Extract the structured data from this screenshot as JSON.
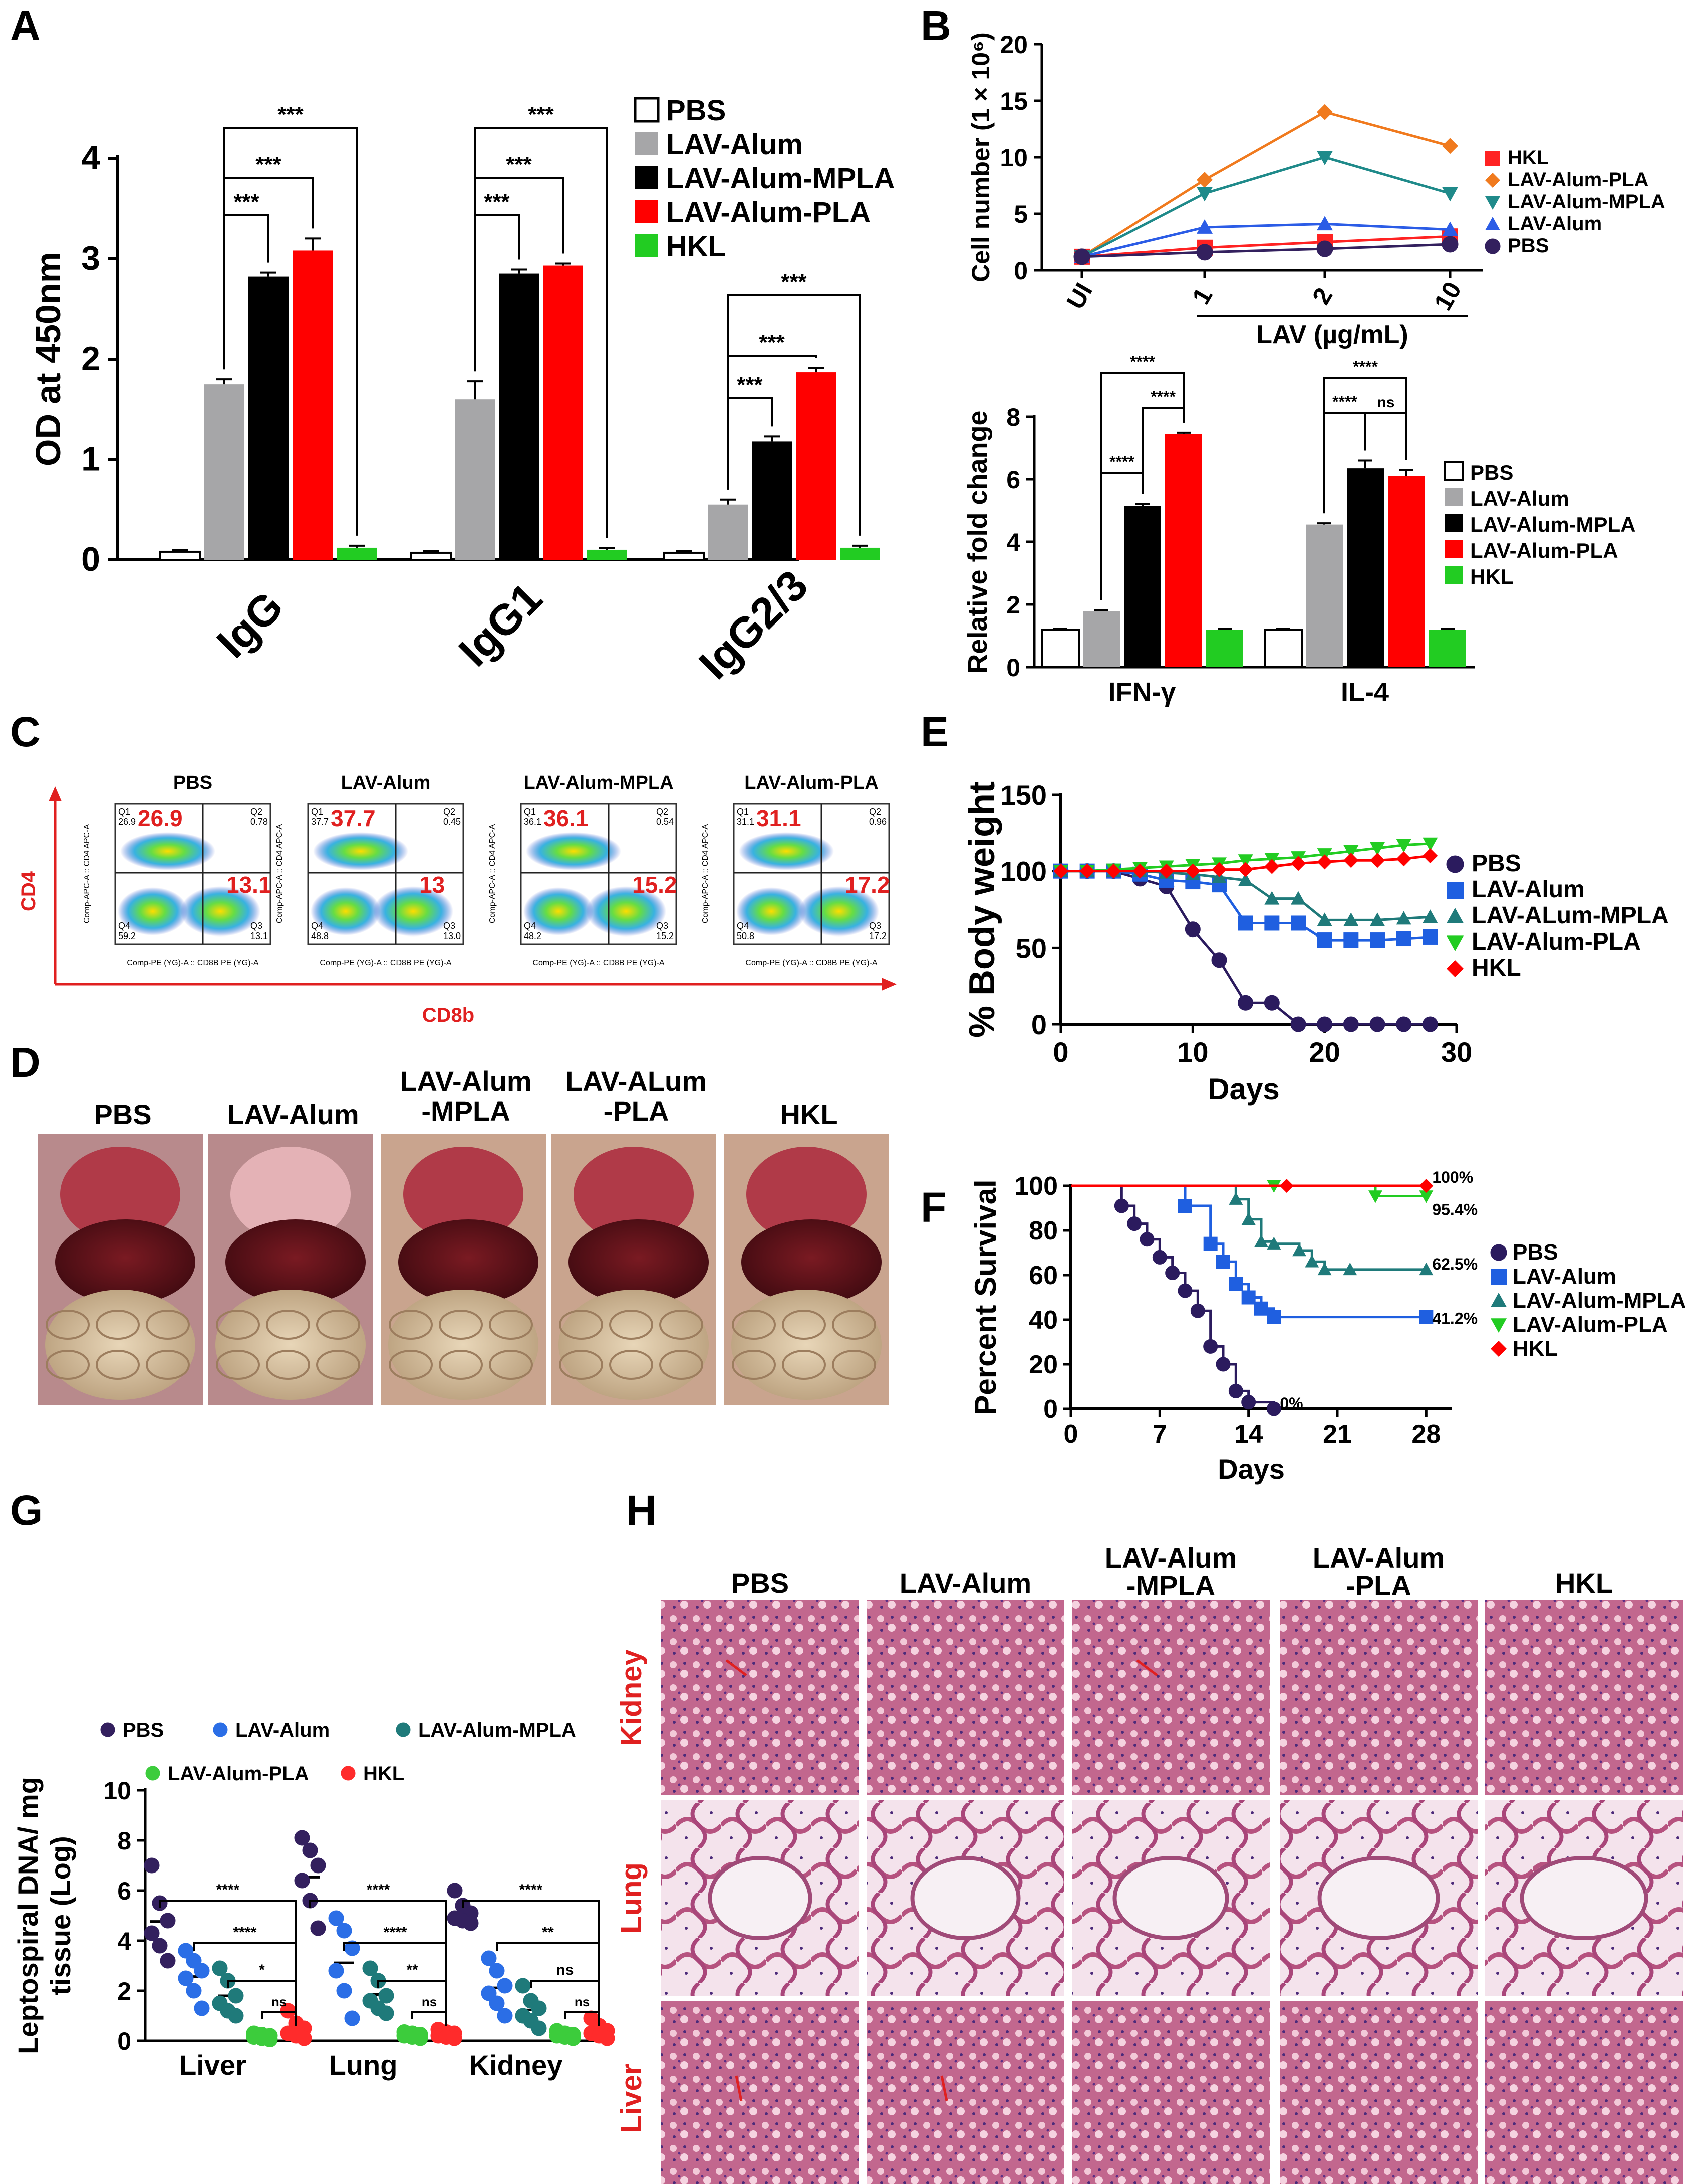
{
  "panel_labels": [
    "A",
    "B",
    "C",
    "D",
    "E",
    "F",
    "G",
    "H"
  ],
  "colors": {
    "pbs": "#ffffff",
    "alum": "#a6a6a8",
    "mpla": "#000000",
    "pla": "#ff0000",
    "hkl": "#22cc22",
    "survival_pbs": "#2b1b5e",
    "survival_alum": "#1f5fe0",
    "survival_mpla": "#1f7a7a",
    "survival_pla": "#22cc22",
    "survival_hkl": "#ff0000",
    "lineB_hkl": "#ff2222",
    "lineB_pla": "#f07a1e",
    "lineB_mpla": "#1f8a8a",
    "lineB_alum": "#2b5ce6",
    "lineB_pbs": "#33205e",
    "g_pbs": "#33205e",
    "g_alum": "#2b6ee6",
    "g_mpla": "#1f7a7a",
    "g_pla": "#3ccc3c",
    "g_hkl": "#ff2b2b",
    "hist_red": "#e02020"
  },
  "chart_data": [
    {
      "id": "A",
      "type": "bar",
      "title": "",
      "ylabel": "OD at 450nm",
      "xlabel": "",
      "ylim": [
        0,
        4
      ],
      "yticks": [
        "0",
        "1",
        "2",
        "3",
        "4"
      ],
      "categories": [
        "IgG",
        "IgG1",
        "IgG2/3"
      ],
      "series": [
        {
          "name": "PBS",
          "values": [
            0.08,
            0.07,
            0.07
          ],
          "errors": [
            0.02,
            0.02,
            0.02
          ]
        },
        {
          "name": "LAV-Alum",
          "values": [
            1.75,
            1.6,
            0.55
          ],
          "errors": [
            0.05,
            0.18,
            0.05
          ]
        },
        {
          "name": "LAV-Alum-MPLA",
          "values": [
            2.82,
            2.85,
            1.18
          ],
          "errors": [
            0.04,
            0.04,
            0.05
          ]
        },
        {
          "name": "LAV-Alum-PLA",
          "values": [
            3.08,
            2.93,
            1.87
          ],
          "errors": [
            0.12,
            0.02,
            0.04
          ]
        },
        {
          "name": "HKL",
          "values": [
            0.12,
            0.1,
            0.12
          ],
          "errors": [
            0.02,
            0.02,
            0.02
          ]
        }
      ],
      "legend": [
        "PBS",
        "LAV-Alum",
        "LAV-Alum-MPLA",
        "LAV-Alum-PLA",
        "HKL"
      ],
      "significance": [
        "***",
        "***",
        "***",
        "***",
        "***",
        "***",
        "***",
        "***",
        "***"
      ]
    },
    {
      "id": "B_top",
      "type": "line",
      "ylabel": "Cell number (1 × 10⁶)",
      "xlabel": "LAV (µg/mL)",
      "ylim": [
        0,
        20
      ],
      "yticks": [
        "0",
        "5",
        "10",
        "15",
        "20"
      ],
      "categories": [
        "UI",
        "1",
        "2",
        "10"
      ],
      "series": [
        {
          "name": "HKL",
          "values": [
            1.2,
            2.0,
            2.5,
            3.0
          ]
        },
        {
          "name": "LAV-Alum-PLA",
          "values": [
            1.2,
            8.0,
            14.0,
            11.0
          ]
        },
        {
          "name": "LAV-Alum-MPLA",
          "values": [
            1.2,
            6.8,
            10.0,
            6.8
          ]
        },
        {
          "name": "LAV-Alum",
          "values": [
            1.2,
            3.8,
            4.1,
            3.6
          ]
        },
        {
          "name": "PBS",
          "values": [
            1.2,
            1.6,
            1.9,
            2.3
          ]
        }
      ]
    },
    {
      "id": "B_bottom",
      "type": "bar",
      "ylabel": "Relative fold change",
      "xlabel": "",
      "ylim": [
        0,
        8
      ],
      "yticks": [
        "0",
        "2",
        "4",
        "6",
        "8"
      ],
      "categories": [
        "IFN-γ",
        "IL-4"
      ],
      "series": [
        {
          "name": "PBS",
          "values": [
            1.2,
            1.2
          ],
          "errors": [
            0.03,
            0.03
          ]
        },
        {
          "name": "LAV-Alum",
          "values": [
            1.78,
            4.55
          ],
          "errors": [
            0.04,
            0.04
          ]
        },
        {
          "name": "LAV-Alum-MPLA",
          "values": [
            5.15,
            6.35
          ],
          "errors": [
            0.06,
            0.25
          ]
        },
        {
          "name": "LAV-Alum-PLA",
          "values": [
            7.45,
            6.1
          ],
          "errors": [
            0.04,
            0.2
          ]
        },
        {
          "name": "HKL",
          "values": [
            1.2,
            1.2
          ],
          "errors": [
            0.03,
            0.03
          ]
        }
      ],
      "legend": [
        "PBS",
        "LAV-Alum",
        "LAV-Alum-MPLA",
        "LAV-Alum-PLA",
        "HKL"
      ],
      "significance": [
        "****",
        "****",
        "****",
        "****",
        "****",
        "ns"
      ]
    },
    {
      "id": "C",
      "type": "scatter",
      "xlabel": "CD8b",
      "ylabel": "CD4",
      "axis_x_small": "Comp-PE (YG)-A :: CD8B PE (YG)-A",
      "axis_y_small": "Comp-APC-A :: CD4 APC-A",
      "plots": [
        {
          "title": "PBS",
          "cd4": "26.9",
          "cd8": "13.1",
          "q1": "26.9",
          "q2": "0.78",
          "q3": "13.1",
          "q4": "59.2"
        },
        {
          "title": "LAV-Alum",
          "cd4": "37.7",
          "cd8": "13",
          "q1": "37.7",
          "q2": "0.45",
          "q3": "13.0",
          "q4": "48.8"
        },
        {
          "title": "LAV-Alum-MPLA",
          "cd4": "36.1",
          "cd8": "15.2",
          "q1": "36.1",
          "q2": "0.54",
          "q3": "15.2",
          "q4": "48.2"
        },
        {
          "title": "LAV-Alum-PLA",
          "cd4": "31.1",
          "cd8": "17.2",
          "q1": "31.1",
          "q2": "0.96",
          "q3": "17.2",
          "q4": "50.8"
        }
      ]
    },
    {
      "id": "E",
      "type": "line",
      "ylabel": "% Body weight",
      "xlabel": "Days",
      "xlim": [
        0,
        30
      ],
      "ylim": [
        0,
        150
      ],
      "xticks": [
        "0",
        "10",
        "20",
        "30"
      ],
      "yticks": [
        "0",
        "50",
        "100",
        "150"
      ],
      "series": [
        {
          "name": "PBS",
          "x": [
            0,
            2,
            4,
            6,
            8,
            10,
            12,
            14,
            16,
            18,
            20,
            22,
            24,
            26,
            28
          ],
          "values": [
            100,
            100,
            100,
            95,
            90,
            62,
            42,
            14,
            14,
            0,
            0,
            0,
            0,
            0,
            0
          ]
        },
        {
          "name": "LAV-Alum",
          "x": [
            0,
            2,
            4,
            6,
            8,
            10,
            12,
            14,
            16,
            18,
            20,
            22,
            24,
            26,
            28
          ],
          "values": [
            100,
            100,
            100,
            98,
            94,
            93,
            91,
            66,
            66,
            66,
            55,
            55,
            55,
            56,
            57
          ]
        },
        {
          "name": "LAV-ALum-MPLA",
          "x": [
            0,
            2,
            4,
            6,
            8,
            10,
            12,
            14,
            16,
            18,
            20,
            22,
            24,
            26,
            28
          ],
          "values": [
            100,
            100,
            100,
            100,
            99,
            98,
            96,
            94,
            82,
            82,
            68,
            68,
            68,
            69,
            70
          ]
        },
        {
          "name": "LAV-Alum-PLA",
          "x": [
            0,
            2,
            4,
            6,
            8,
            10,
            12,
            14,
            16,
            18,
            20,
            22,
            24,
            26,
            28
          ],
          "values": [
            100,
            100,
            101,
            102,
            103,
            104,
            105,
            107,
            108,
            109,
            111,
            113,
            115,
            117,
            118
          ]
        },
        {
          "name": "HKL",
          "x": [
            0,
            2,
            4,
            6,
            8,
            10,
            12,
            14,
            16,
            18,
            20,
            22,
            24,
            26,
            28
          ],
          "values": [
            100,
            100,
            100,
            100,
            100,
            100,
            101,
            101,
            103,
            105,
            106,
            107,
            107,
            108,
            110
          ]
        }
      ]
    },
    {
      "id": "F",
      "type": "line",
      "ylabel": "Percent Survival",
      "xlabel": "Days",
      "xlim": [
        0,
        30
      ],
      "ylim": [
        0,
        100
      ],
      "xticks": [
        "0",
        "7",
        "14",
        "21",
        "28"
      ],
      "yticks": [
        "0",
        "20",
        "40",
        "60",
        "80",
        "100"
      ],
      "series": [
        {
          "name": "PBS",
          "x": [
            0,
            4,
            5,
            6,
            7,
            8,
            9,
            10,
            11,
            12,
            13,
            14,
            16
          ],
          "values": [
            100,
            91,
            83,
            76,
            68,
            61,
            53,
            44,
            28,
            20,
            8,
            3,
            0
          ],
          "end_label": "0%"
        },
        {
          "name": "LAV-Alum",
          "x": [
            0,
            9,
            11,
            12,
            13,
            14,
            15,
            16,
            28
          ],
          "values": [
            100,
            91,
            74,
            66,
            56,
            50,
            45,
            41.2,
            41.2
          ],
          "end_label": "41.2%"
        },
        {
          "name": "LAV-Alum-MPLA",
          "x": [
            0,
            13,
            14,
            15,
            16,
            18,
            19,
            20,
            22,
            28
          ],
          "values": [
            100,
            94,
            85,
            75,
            74,
            71,
            66,
            62.5,
            62.5,
            62.5
          ],
          "end_label": "62.5%"
        },
        {
          "name": "LAV-Alum-PLA",
          "x": [
            0,
            16,
            24,
            28
          ],
          "values": [
            100,
            100,
            95.4,
            95.4
          ],
          "end_label": "95.4%"
        },
        {
          "name": "HKL",
          "x": [
            0,
            17,
            28
          ],
          "values": [
            100,
            100,
            100
          ],
          "end_label": "100%"
        }
      ]
    },
    {
      "id": "G",
      "type": "scatter",
      "ylabel_line1": "Leptospiral DNA/ mg",
      "ylabel_line2": "tissue (Log)",
      "ylim": [
        0,
        10
      ],
      "yticks": [
        "0",
        "2",
        "4",
        "6",
        "8",
        "10"
      ],
      "categories": [
        "Liver",
        "Lung",
        "Kidney"
      ],
      "legend": [
        "PBS",
        "LAV-Alum",
        "LAV-Alum-MPLA",
        "LAV-Alum-PLA",
        "HKL"
      ],
      "series": [
        {
          "name": "PBS",
          "points": [
            [
              7.0,
              5.5,
              4.8,
              4.3,
              3.8,
              3.2
            ],
            [
              8.1,
              7.6,
              7.0,
              6.4,
              5.6,
              4.5
            ],
            [
              6.0,
              5.4,
              5.1,
              4.9,
              4.8,
              4.7
            ]
          ]
        },
        {
          "name": "LAV-Alum",
          "points": [
            [
              3.6,
              3.2,
              2.8,
              2.5,
              2.0,
              1.3
            ],
            [
              4.9,
              4.4,
              3.7,
              2.8,
              2.0,
              0.9
            ],
            [
              3.3,
              2.8,
              2.2,
              1.9,
              1.5,
              1.0
            ]
          ]
        },
        {
          "name": "LAV-Alum-MPLA",
          "points": [
            [
              2.9,
              2.4,
              1.8,
              1.5,
              1.2,
              1.0
            ],
            [
              2.9,
              2.4,
              1.8,
              1.6,
              1.3,
              1.1
            ],
            [
              2.2,
              1.6,
              1.3,
              1.0,
              0.8,
              0.5
            ]
          ]
        },
        {
          "name": "LAV-Alum-PLA",
          "points": [
            [
              0.3,
              0.25,
              0.2,
              0.15,
              0.1,
              0.05
            ],
            [
              0.35,
              0.3,
              0.25,
              0.2,
              0.15,
              0.1
            ],
            [
              0.4,
              0.3,
              0.25,
              0.2,
              0.15,
              0.1
            ]
          ]
        },
        {
          "name": "HKL",
          "points": [
            [
              1.2,
              0.7,
              0.5,
              0.3,
              0.2,
              0.1
            ],
            [
              0.45,
              0.35,
              0.3,
              0.2,
              0.15,
              0.1
            ],
            [
              0.9,
              0.6,
              0.4,
              0.3,
              0.2,
              0.1
            ]
          ]
        }
      ],
      "significance": [
        "****",
        "****",
        "*",
        "ns",
        "****",
        "****",
        "**",
        "ns",
        "****",
        "**",
        "ns",
        "ns"
      ]
    }
  ],
  "panel_D": {
    "labels": [
      "PBS",
      "LAV-Alum",
      "LAV-Alum\n-MPLA",
      "LAV-ALum\n-PLA",
      "HKL"
    ],
    "label_lines": [
      [
        "PBS"
      ],
      [
        "LAV-Alum"
      ],
      [
        "LAV-Alum",
        "-MPLA"
      ],
      [
        "LAV-ALum",
        "-PLA"
      ],
      [
        "HKL"
      ]
    ]
  },
  "panel_H": {
    "col_labels": [
      [
        "PBS"
      ],
      [
        "LAV-Alum"
      ],
      [
        "LAV-Alum",
        "-MPLA"
      ],
      [
        "LAV-Alum",
        "-PLA"
      ],
      [
        "HKL"
      ]
    ],
    "row_labels": [
      "Kidney",
      "Lung",
      "Liver"
    ]
  }
}
